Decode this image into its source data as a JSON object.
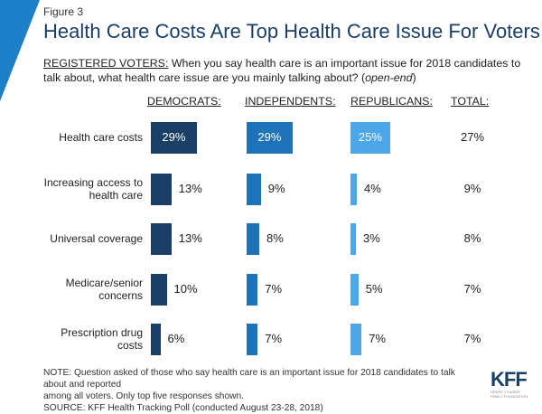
{
  "figure_label": "Figure 3",
  "title": "Health Care Costs Are Top Health Care Issue For Voters",
  "question": {
    "group": "REGISTERED VOTERS:",
    "text": " When you say health care is an important issue for 2018 candidates to talk about, what health care issue are you mainly talking about? (",
    "italic": "open-end",
    "end": ")"
  },
  "colors": {
    "democrats": "#1a3f66",
    "independents": "#1f73b9",
    "republicans": "#4da6e8",
    "corner": "#1e7fc9"
  },
  "chart_data": {
    "type": "bar",
    "orientation": "horizontal",
    "categories": [
      "Health care costs",
      "Increasing access to health care",
      "Universal coverage",
      "Medicare/senior concerns",
      "Prescription drug costs"
    ],
    "series": [
      {
        "name": "DEMOCRATS:",
        "values": [
          29,
          13,
          13,
          10,
          6
        ],
        "labels": [
          "29%",
          "13%",
          "13%",
          "10%",
          "6%"
        ]
      },
      {
        "name": "INDEPENDENTS:",
        "values": [
          29,
          9,
          8,
          7,
          7
        ],
        "labels": [
          "29%",
          "9%",
          "8%",
          "7%",
          "7%"
        ]
      },
      {
        "name": "REPUBLICANS:",
        "values": [
          25,
          4,
          3,
          5,
          7
        ],
        "labels": [
          "25%",
          "4%",
          "3%",
          "5%",
          "7%"
        ]
      }
    ],
    "total": {
      "name": "TOTAL:",
      "values": [
        27,
        9,
        8,
        7,
        7
      ],
      "labels": [
        "27%",
        "9%",
        "8%",
        "7%",
        "7%"
      ]
    }
  },
  "row_labels": [
    [
      "Health care costs"
    ],
    [
      "Increasing access to",
      "health care"
    ],
    [
      "Universal coverage"
    ],
    [
      "Medicare/senior",
      "concerns"
    ],
    [
      "Prescription drug",
      "costs"
    ]
  ],
  "note": {
    "line1": "NOTE: Question asked of those who say health care is an important issue for 2018 candidates to talk about and reported",
    "line2": "among all voters. Only top five responses shown.",
    "line3": "SOURCE: KFF Health Tracking Poll (conducted August 23-28, 2018)"
  },
  "logo": {
    "text": "KFF",
    "sub1": "HENRY J KAISER",
    "sub2": "FAMILY FOUNDATION"
  }
}
